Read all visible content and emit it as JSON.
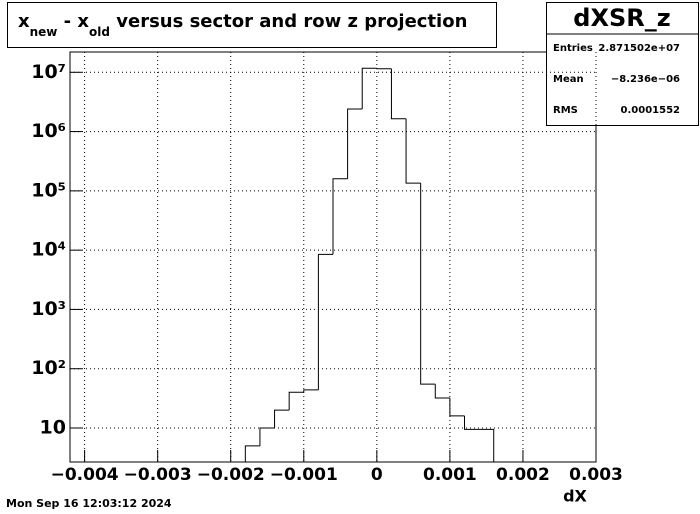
{
  "chart_data": {
    "type": "histogram",
    "title_segments": [
      "x",
      "new",
      " - x",
      "old",
      " versus sector and row  z projection"
    ],
    "stats": {
      "name": "dXSR_z",
      "rows": [
        [
          "Entries",
          "2.871502e+07"
        ],
        [
          "Mean",
          "−8.236e−06"
        ],
        [
          "RMS",
          "0.0001552"
        ]
      ]
    },
    "x_label": "dX",
    "date": "Mon Sep 16 12:03:12 2024",
    "bins": [
      -0.0018,
      -0.0016,
      -0.0014,
      -0.0012,
      -0.001,
      -0.0008,
      -0.0006,
      -0.0004,
      -0.0002,
      0,
      0.0002,
      0.0004,
      0.0006,
      0.0008,
      0.001,
      0.0012,
      0.0014,
      0.0016
    ],
    "values": [
      5,
      10,
      20,
      40,
      44,
      8500,
      160000,
      2400000,
      11700000,
      11500000,
      1650000,
      135000,
      55,
      32,
      16,
      9.5,
      9.5
    ],
    "color": "#000000",
    "xlim": [
      -0.0042,
      0.003
    ],
    "xticks": [
      {
        "value": -0.004,
        "label": "−0.004"
      },
      {
        "value": -0.003,
        "label": "−0.003"
      },
      {
        "value": -0.002,
        "label": "−0.002"
      },
      {
        "value": -0.001,
        "label": "−0.001"
      },
      0,
      0.001,
      0.002,
      0.003
    ],
    "ylim": [
      2.67,
      22000000
    ],
    "log_y": true,
    "yticks": [
      10,
      {
        "value": 100,
        "label": "10²"
      },
      {
        "value": 1000,
        "label": "10³"
      },
      {
        "value": 10000,
        "label": "10⁴"
      },
      {
        "value": 100000,
        "label": "10⁵"
      },
      {
        "value": 1000000,
        "label": "10⁶"
      },
      {
        "value": 10000000,
        "label": "10⁷"
      }
    ],
    "grid": true
  }
}
